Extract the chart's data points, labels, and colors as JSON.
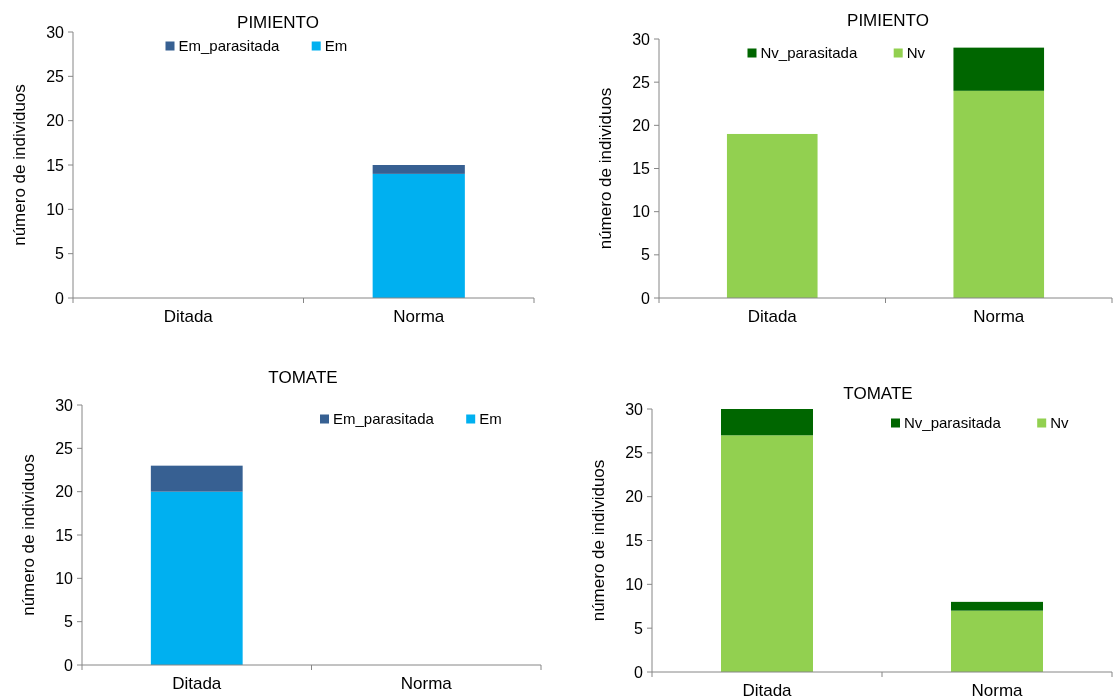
{
  "chart_data": [
    {
      "type": "bar",
      "stacked": true,
      "title": "PIMIENTO",
      "ylabel": "número de individuos",
      "categories": [
        "Ditada",
        "Norma"
      ],
      "series": [
        {
          "name": "Em",
          "color": "#00b0f0",
          "values": [
            null,
            14
          ]
        },
        {
          "name": "Em_parasitada",
          "color": "#376092",
          "values": [
            null,
            1
          ]
        }
      ],
      "ylim": [
        0,
        30
      ],
      "yticks": [
        0,
        5,
        10,
        15,
        20,
        25,
        30
      ],
      "legend": "top"
    },
    {
      "type": "bar",
      "stacked": true,
      "title": "PIMIENTO",
      "ylabel": "número de individuos",
      "categories": [
        "Ditada",
        "Norma"
      ],
      "series": [
        {
          "name": "Nv",
          "color": "#92d050",
          "values": [
            19,
            24
          ]
        },
        {
          "name": "Nv_parasitada",
          "color": "#006600",
          "values": [
            null,
            5
          ]
        }
      ],
      "ylim": [
        0,
        30
      ],
      "yticks": [
        0,
        5,
        10,
        15,
        20,
        25,
        30
      ],
      "legend": "top"
    },
    {
      "type": "bar",
      "stacked": true,
      "title": "TOMATE",
      "ylabel": "número de individuos",
      "categories": [
        "Ditada",
        "Norma"
      ],
      "series": [
        {
          "name": "Em",
          "color": "#00b0f0",
          "values": [
            20,
            null
          ]
        },
        {
          "name": "Em_parasitada",
          "color": "#376092",
          "values": [
            3,
            null
          ]
        }
      ],
      "ylim": [
        0,
        30
      ],
      "yticks": [
        0,
        5,
        10,
        15,
        20,
        25,
        30
      ],
      "legend": "top right"
    },
    {
      "type": "bar",
      "stacked": true,
      "title": "TOMATE",
      "ylabel": "número de individuos",
      "categories": [
        "Ditada",
        "Norma"
      ],
      "series": [
        {
          "name": "Nv",
          "color": "#92d050",
          "values": [
            27,
            7
          ]
        },
        {
          "name": "Nv_parasitada",
          "color": "#006600",
          "values": [
            3,
            1
          ]
        }
      ],
      "ylim": [
        0,
        30
      ],
      "yticks": [
        0,
        5,
        10,
        15,
        20,
        25,
        30
      ],
      "legend": "top right"
    }
  ]
}
